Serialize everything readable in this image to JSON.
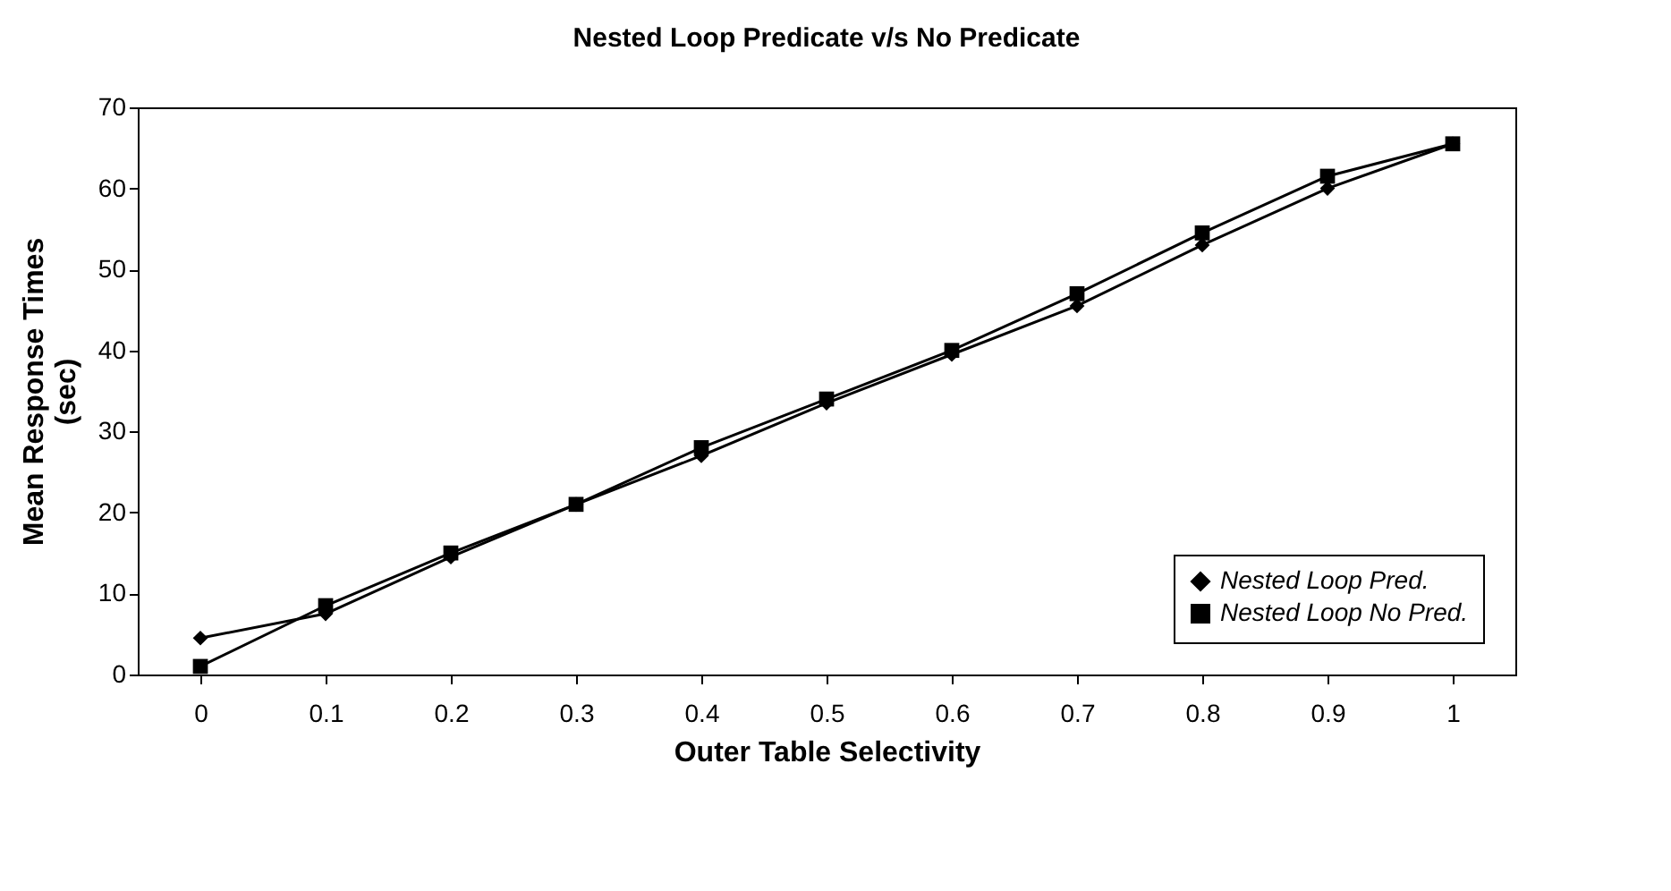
{
  "chart_data": {
    "type": "line",
    "title": "Nested Loop Predicate v/s No Predicate",
    "xlabel": "Outer Table Selectivity",
    "ylabel": "Mean Response Times (sec)",
    "categories": [
      "0",
      "0.1",
      "0.2",
      "0.3",
      "0.4",
      "0.5",
      "0.6",
      "0.7",
      "0.8",
      "0.9",
      "1"
    ],
    "series": [
      {
        "name": "Nested Loop Pred.",
        "color": "#000000",
        "marker": "diamond",
        "values": [
          4.5,
          7.5,
          14.5,
          21,
          27,
          33.5,
          39.5,
          45.5,
          53,
          60,
          65.5
        ]
      },
      {
        "name": "Nested Loop No Pred.",
        "color": "#000000",
        "marker": "square",
        "values": [
          1,
          8.5,
          15,
          21,
          28,
          34,
          40,
          47,
          54.5,
          61.5,
          65.5
        ]
      }
    ],
    "ylim": [
      0,
      70
    ],
    "yticks": [
      0,
      10,
      20,
      30,
      40,
      50,
      60,
      70
    ],
    "grid": false,
    "legend": "bottom right",
    "line_style": "solid"
  }
}
